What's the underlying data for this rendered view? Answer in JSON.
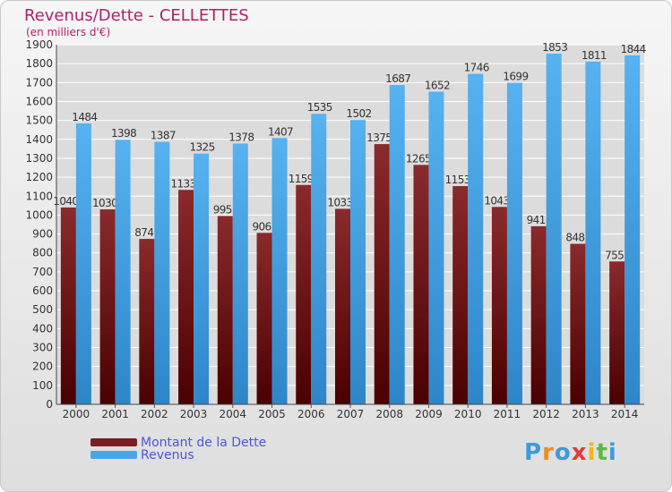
{
  "header": {
    "title": "Revenus/Dette - CELLETTES",
    "subtitle": "(en milliers d'€)"
  },
  "chart_data": {
    "type": "bar",
    "categories": [
      "2000",
      "2001",
      "2002",
      "2003",
      "2004",
      "2005",
      "2006",
      "2007",
      "2008",
      "2009",
      "2010",
      "2011",
      "2012",
      "2013",
      "2014"
    ],
    "series": [
      {
        "name": "Montant de la Dette",
        "color": "#7a1f22",
        "values": [
          1040,
          1030,
          874,
          1133,
          995,
          906,
          1159,
          1033,
          1375,
          1265,
          1153,
          1043,
          941,
          848,
          755
        ],
        "labels": [
          "1040",
          "1030",
          "874",
          "1133",
          "995",
          "906",
          "1159",
          "1033",
          "1375",
          "1265",
          "1153",
          "1043",
          "941",
          "848",
          "755"
        ]
      },
      {
        "name": "Revenus",
        "color": "#4ba6e8",
        "values": [
          1484,
          1398,
          1387,
          1325,
          1378,
          1407,
          1535,
          1502,
          1687,
          1652,
          1746,
          1699,
          1853,
          1811,
          1844
        ],
        "labels": [
          "1484",
          "1398",
          "1387",
          "1325",
          "1378",
          "1407",
          "1535",
          "1502",
          "1687",
          "1652",
          "1746",
          "1699",
          "1853",
          "1811",
          "1844"
        ]
      }
    ],
    "ylim": [
      0,
      1900
    ],
    "yticks": [
      0,
      100,
      200,
      300,
      400,
      500,
      600,
      700,
      800,
      900,
      1000,
      1100,
      1200,
      1300,
      1400,
      1500,
      1600,
      1700,
      1800,
      1900
    ],
    "grid": true,
    "legend_position": "bottom-left"
  },
  "legend": {
    "items": [
      {
        "label": "Montant de la Dette",
        "color": "#7a1f22"
      },
      {
        "label": "Revenus",
        "color": "#4ba6e8"
      }
    ]
  },
  "brand": {
    "letters": [
      "P",
      "r",
      "o",
      "x",
      "i",
      "t",
      "i"
    ],
    "colors": [
      "#3f9ad8",
      "#f08a1c",
      "#3f9ad8",
      "#e23b3b",
      "#f2b51c",
      "#5cb847",
      "#3f9ad8"
    ]
  }
}
